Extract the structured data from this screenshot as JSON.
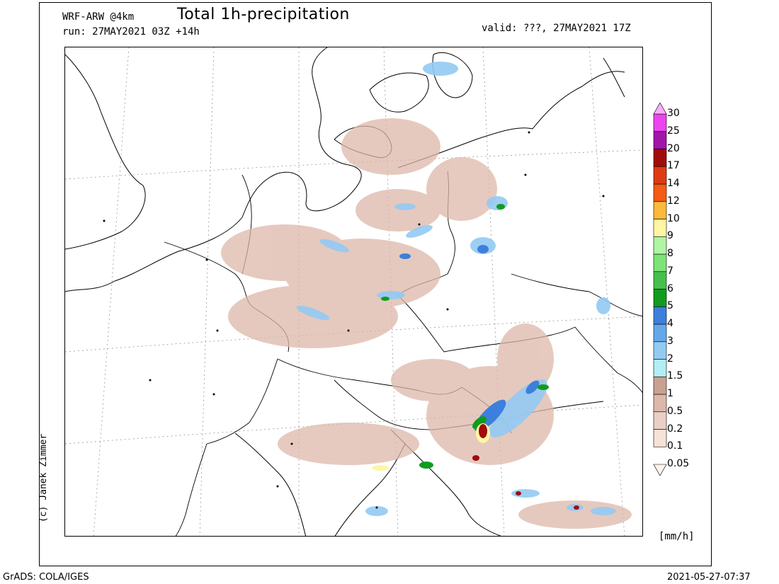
{
  "header": {
    "model": "WRF-ARW @4km",
    "run": "run: 27MAY2021 03Z +14h",
    "title": "Total 1h-precipitation",
    "valid": "valid: ???, 27MAY2021 17Z"
  },
  "credit": "(c) Janek Zimmer",
  "unit": "[mm/h]",
  "footer": {
    "left": "GrADS: COLA/IGES",
    "right": "2021-05-27-07:37"
  },
  "legend": {
    "levels": [
      "0.05",
      "0.1",
      "0.2",
      "0.5",
      "1",
      "1.5",
      "2",
      "3",
      "4",
      "5",
      "6",
      "7",
      "8",
      "9",
      "10",
      "12",
      "14",
      "17",
      "20",
      "25",
      "30"
    ],
    "colors": [
      "#fdf3ea",
      "#f6e2d6",
      "#ead0c4",
      "#ddb8aa",
      "#c9a193",
      "#b2eef3",
      "#92caf3",
      "#64a8ec",
      "#3d7fdc",
      "#119c1e",
      "#46c04c",
      "#7be378",
      "#aff5a4",
      "#fff6a4",
      "#fcb93a",
      "#f45b14",
      "#df3b12",
      "#a00b0b",
      "#a315a8",
      "#ec44ee",
      "#f7b0f5"
    ]
  }
}
